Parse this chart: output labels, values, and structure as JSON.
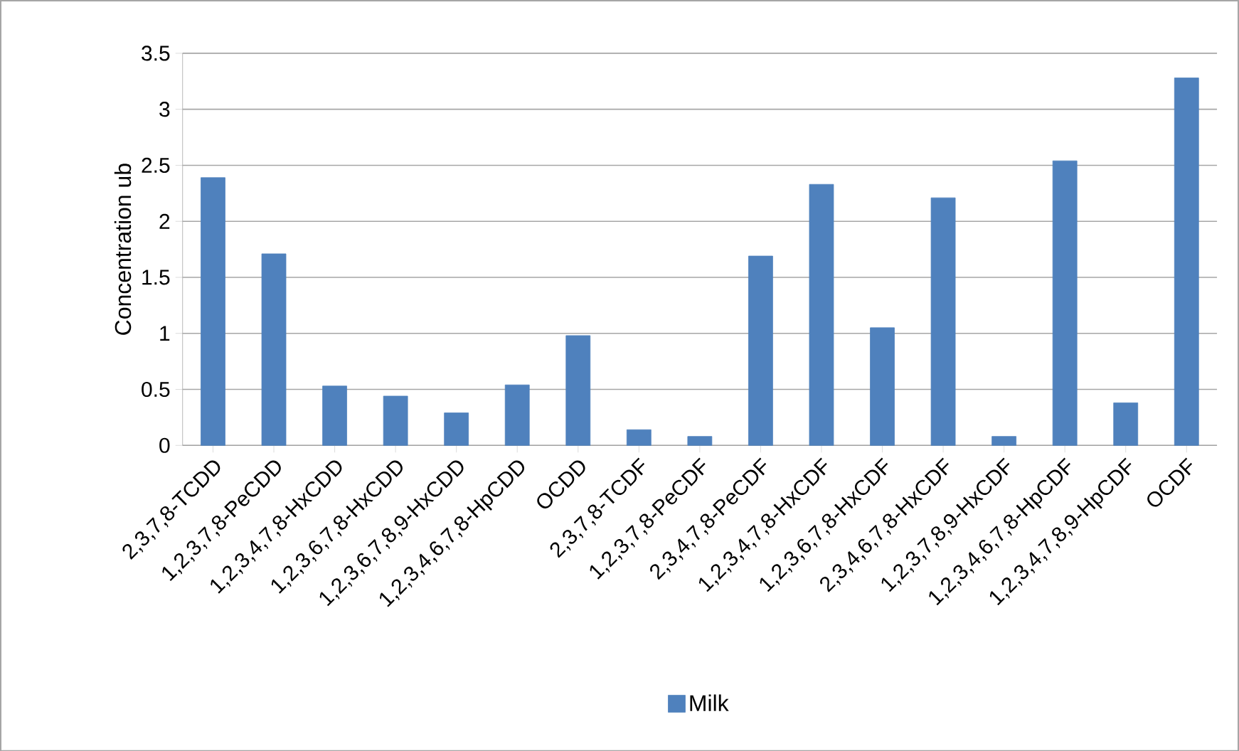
{
  "chart_data": {
    "type": "bar",
    "ylabel": "Concentration ub",
    "categories": [
      "2,3,7,8-TCDD",
      "1,2,3,7,8-PeCDD",
      "1,2,3,4,7,8-HxCDD",
      "1,2,3,6,7,8-HxCDD",
      "1,2,3,6,7,8,9-HxCDD",
      "1,2,3,4,6,7,8-HpCDD",
      "OCDD",
      "2,3,7,8-TCDF",
      "1,2,3,7,8-PeCDF",
      "2,3,4,7,8-PeCDF",
      "1,2,3,4,7,8-HxCDF",
      "1,2,3,6,7,8-HxCDF",
      "2,3,4,6,7,8-HxCDF",
      "1,2,3,7,8,9-HxCDF",
      "1,2,3,4,6,7,8-HpCDF",
      "1,2,3,4,7,8,9-HpCDF",
      "OCDF"
    ],
    "series": [
      {
        "name": "Milk",
        "color": "#4f81bd",
        "values": [
          2.39,
          1.71,
          0.53,
          0.44,
          0.29,
          0.54,
          0.98,
          0.14,
          0.08,
          1.69,
          2.33,
          1.05,
          2.21,
          0.08,
          2.54,
          0.38,
          3.28
        ]
      }
    ],
    "ylim": [
      0,
      3.5
    ],
    "yticks": [
      0,
      0.5,
      1,
      1.5,
      2,
      2.5,
      3,
      3.5
    ],
    "grid": "y",
    "legend": "bottom"
  }
}
